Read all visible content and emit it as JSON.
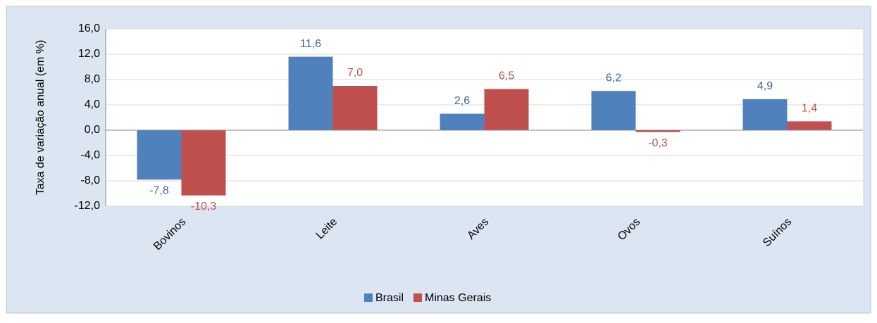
{
  "chart_data": {
    "type": "bar",
    "y_label": "Taxa de variação anual (em %)",
    "categories": [
      "Bovinos",
      "Leite",
      "Aves",
      "Ovos",
      "Suínos"
    ],
    "series": [
      {
        "name": "Brasil",
        "color": "#4f81bd",
        "values": [
          -7.8,
          11.6,
          2.6,
          6.2,
          4.9
        ],
        "value_labels": [
          "-7,8",
          "11,6",
          "2,6",
          "6,2",
          "4,9"
        ]
      },
      {
        "name": "Minas Gerais",
        "color": "#c0504d",
        "values": [
          -10.3,
          7.0,
          6.5,
          -0.3,
          1.4
        ],
        "value_labels": [
          "-10,3",
          "7,0",
          "6,5",
          "-0,3",
          "1,4"
        ]
      }
    ],
    "ylim": [
      -12,
      16
    ],
    "yticks": [
      {
        "value": -12,
        "label": "-12,0"
      },
      {
        "value": -8,
        "label": "-8,0"
      },
      {
        "value": -4,
        "label": "-4,0"
      },
      {
        "value": 0,
        "label": "0,0"
      },
      {
        "value": 4,
        "label": "4,0"
      },
      {
        "value": 8,
        "label": "8,0"
      },
      {
        "value": 12,
        "label": "12,0"
      },
      {
        "value": 16,
        "label": "16,0"
      }
    ],
    "grid": true,
    "legend": "bottom"
  }
}
